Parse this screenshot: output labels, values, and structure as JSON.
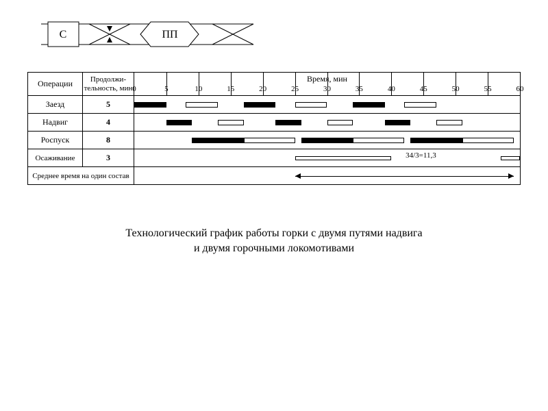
{
  "track_diagram": {
    "left_label": "С",
    "right_label": "ПП",
    "line_color": "#000000",
    "box_fill": "#ffffff"
  },
  "table": {
    "headers": {
      "operations": "Операции",
      "duration": "Продолжи-\nтельность, мин",
      "time": "Время, мин"
    },
    "time_axis": {
      "min": 0,
      "max": 60,
      "tick_step": 5,
      "ticks": [
        0,
        5,
        10,
        15,
        20,
        25,
        30,
        35,
        40,
        45,
        50,
        55,
        60
      ]
    },
    "rows": [
      {
        "name": "Заезд",
        "duration": "5",
        "bars": [
          {
            "start": 0,
            "end": 5,
            "style": "solid"
          },
          {
            "start": 8,
            "end": 13,
            "style": "hollow"
          },
          {
            "start": 17,
            "end": 22,
            "style": "solid"
          },
          {
            "start": 25,
            "end": 30,
            "style": "hollow"
          },
          {
            "start": 34,
            "end": 39,
            "style": "solid"
          },
          {
            "start": 42,
            "end": 47,
            "style": "hollow"
          }
        ]
      },
      {
        "name": "Надвиг",
        "duration": "4",
        "bars": [
          {
            "start": 5,
            "end": 9,
            "style": "solid"
          },
          {
            "start": 13,
            "end": 17,
            "style": "hollow"
          },
          {
            "start": 22,
            "end": 26,
            "style": "solid"
          },
          {
            "start": 30,
            "end": 34,
            "style": "hollow"
          },
          {
            "start": 39,
            "end": 43,
            "style": "solid"
          },
          {
            "start": 47,
            "end": 51,
            "style": "hollow"
          }
        ]
      },
      {
        "name": "Роспуск",
        "duration": "8",
        "bars": [
          {
            "start": 9,
            "end": 17,
            "style": "solid"
          },
          {
            "start": 17,
            "end": 25,
            "style": "hollow"
          },
          {
            "start": 26,
            "end": 34,
            "style": "solid"
          },
          {
            "start": 34,
            "end": 42,
            "style": "hollow"
          },
          {
            "start": 43,
            "end": 51,
            "style": "solid"
          },
          {
            "start": 51,
            "end": 59,
            "style": "hollow"
          }
        ]
      },
      {
        "name": "Осаживание",
        "duration": "3",
        "bars": [
          {
            "start": 25,
            "end": 40,
            "style": "hollow",
            "thin": true
          },
          {
            "start": 57,
            "end": 60,
            "style": "hollow",
            "thin": true
          }
        ]
      }
    ],
    "footer_label": "Среднее время на один состав",
    "annotation": {
      "text": "34/3=11,3",
      "arrow_start": 25,
      "arrow_end": 59,
      "label_at": 42
    },
    "dash_lines": [
      5,
      8,
      9,
      13,
      17,
      22,
      25,
      26,
      30,
      34,
      39,
      42,
      43,
      47,
      51,
      59
    ],
    "styling": {
      "border_color": "#000000",
      "solid_bar_color": "#000000",
      "hollow_bar_fill": "#ffffff",
      "font_family": "Times New Roman",
      "header_fontsize": 12,
      "cell_fontsize": 12
    }
  },
  "caption": "Технологический график работы горки с двумя путями надвига\nи двумя горочными локомотивами"
}
